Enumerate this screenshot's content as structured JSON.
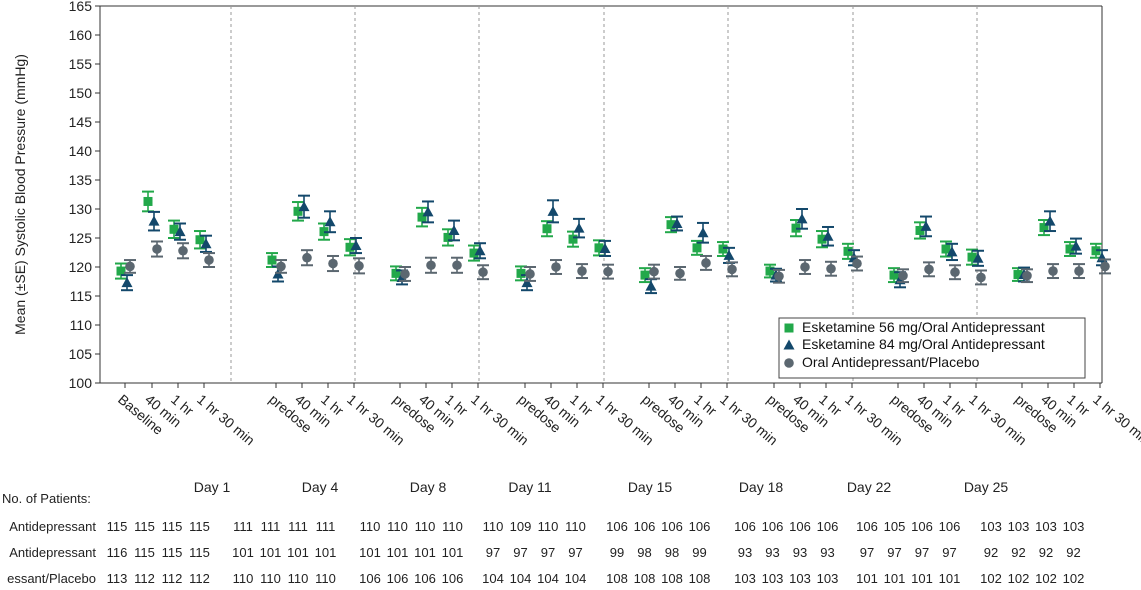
{
  "chart_data": {
    "type": "scatter",
    "ylabel": "Mean (±SE) Systolic Blood Pressure (mmHg)",
    "xlabel": "",
    "ylim": [
      100,
      165
    ],
    "yticks": [
      100,
      105,
      110,
      115,
      120,
      125,
      130,
      135,
      140,
      145,
      150,
      155,
      160,
      165
    ],
    "grid": false,
    "legend_position": "bottom-right",
    "groups": [
      {
        "day": "",
        "timepoints": [
          "Baseline"
        ]
      },
      {
        "day": "Day 1",
        "timepoints": [
          "40 min",
          "1 hr",
          "1 hr 30 min"
        ]
      },
      {
        "day": "Day 4",
        "timepoints": [
          "predose",
          "40 min",
          "1 hr",
          "1 hr 30 min"
        ]
      },
      {
        "day": "Day 8",
        "timepoints": [
          "predose",
          "40 min",
          "1 hr",
          "1 hr 30 min"
        ]
      },
      {
        "day": "Day 11",
        "timepoints": [
          "predose",
          "40 min",
          "1 hr",
          "1 hr 30 min"
        ]
      },
      {
        "day": "Day 15",
        "timepoints": [
          "predose",
          "40 min",
          "1 hr",
          "1 hr 30 min"
        ]
      },
      {
        "day": "Day 18",
        "timepoints": [
          "predose",
          "40 min",
          "1 hr",
          "1 hr 30 min"
        ]
      },
      {
        "day": "Day 22",
        "timepoints": [
          "predose",
          "40 min",
          "1 hr",
          "1 hr 30 min"
        ]
      },
      {
        "day": "Day 25",
        "timepoints": [
          "predose",
          "40 min",
          "1 hr",
          "1 hr 30 min"
        ]
      }
    ],
    "series": [
      {
        "name": "Esketamine 56 mg/Oral Antidepressant",
        "marker": "square",
        "color": "#22a84a",
        "values": [
          119.3,
          131.3,
          126.5,
          124.7,
          121.2,
          129.6,
          126.1,
          123.4,
          118.9,
          128.6,
          125.1,
          122.4,
          118.9,
          126.6,
          124.8,
          123.3,
          118.6,
          127.3,
          123.3,
          123.1,
          119.3,
          126.7,
          124.8,
          122.7,
          118.6,
          126.3,
          123.1,
          121.7,
          118.7,
          126.8,
          123.1,
          122.8
        ],
        "se": [
          1.3,
          1.7,
          1.5,
          1.5,
          1.2,
          1.6,
          1.4,
          1.4,
          1.2,
          1.6,
          1.4,
          1.3,
          1.2,
          1.3,
          1.3,
          1.3,
          1.2,
          1.3,
          1.2,
          1.2,
          1.1,
          1.4,
          1.4,
          1.3,
          1.2,
          1.4,
          1.3,
          1.3,
          1.1,
          1.3,
          1.2,
          1.2
        ]
      },
      {
        "name": "Esketamine 84 mg/Oral Antidepressant",
        "marker": "triangle",
        "color": "#13486b",
        "values": [
          117.3,
          127.9,
          126.1,
          124.0,
          118.8,
          130.4,
          127.8,
          123.7,
          118.2,
          129.5,
          126.3,
          122.8,
          117.3,
          129.6,
          126.7,
          123.2,
          116.7,
          127.5,
          125.9,
          122.0,
          118.6,
          128.3,
          125.3,
          121.6,
          117.8,
          127.0,
          122.6,
          121.5,
          118.7,
          127.9,
          123.6,
          121.6
        ],
        "se": [
          1.3,
          1.6,
          1.4,
          1.4,
          1.3,
          1.9,
          1.8,
          1.3,
          1.2,
          1.8,
          1.7,
          1.3,
          1.3,
          1.9,
          1.6,
          1.3,
          1.2,
          1.2,
          1.7,
          1.3,
          1.1,
          1.7,
          1.6,
          1.3,
          1.3,
          1.7,
          1.4,
          1.3,
          1.2,
          1.7,
          1.3,
          1.3
        ]
      },
      {
        "name": "Oral Antidepressant/Placebo",
        "marker": "circle",
        "color": "#5b6770",
        "values": [
          120.1,
          123.1,
          122.8,
          121.2,
          120.1,
          121.6,
          120.6,
          120.2,
          118.8,
          120.3,
          120.3,
          119.1,
          118.8,
          120.0,
          119.3,
          119.2,
          119.2,
          118.9,
          120.7,
          119.6,
          118.4,
          120.0,
          119.7,
          120.6,
          118.5,
          119.6,
          119.1,
          118.2,
          118.5,
          119.3,
          119.3,
          120.1
        ],
        "se": [
          1.1,
          1.3,
          1.3,
          1.2,
          1.1,
          1.3,
          1.3,
          1.3,
          1.2,
          1.3,
          1.3,
          1.2,
          1.2,
          1.2,
          1.2,
          1.2,
          1.2,
          1.1,
          1.2,
          1.2,
          1.1,
          1.2,
          1.2,
          1.2,
          1.1,
          1.2,
          1.2,
          1.2,
          1.1,
          1.2,
          1.2,
          1.2
        ]
      }
    ]
  },
  "patients": {
    "title": "No. of Patients:",
    "rows": [
      {
        "label": "Antidepressant",
        "groups": [
          [
            "115",
            "115",
            "115",
            "115"
          ],
          [
            "111",
            "111",
            "111",
            "111"
          ],
          [
            "110",
            "110",
            "110",
            "110"
          ],
          [
            "110",
            "109",
            "110",
            "110"
          ],
          [
            "106",
            "106",
            "106",
            "106"
          ],
          [
            "106",
            "106",
            "106",
            "106"
          ],
          [
            "106",
            "105",
            "106",
            "106"
          ],
          [
            "103",
            "103",
            "103",
            "103"
          ]
        ]
      },
      {
        "label": "Antidepressant",
        "groups": [
          [
            "116",
            "115",
            "115",
            "115"
          ],
          [
            "101",
            "101",
            "101",
            "101"
          ],
          [
            "101",
            "101",
            "101",
            "101"
          ],
          [
            "97",
            "97",
            "97",
            "97"
          ],
          [
            "99",
            "98",
            "98",
            "99"
          ],
          [
            "93",
            "93",
            "93",
            "93"
          ],
          [
            "97",
            "97",
            "97",
            "97"
          ],
          [
            "92",
            "92",
            "92",
            "92"
          ]
        ]
      },
      {
        "label": "essant/Placebo",
        "groups": [
          [
            "113",
            "112",
            "112",
            "112"
          ],
          [
            "110",
            "110",
            "110",
            "110"
          ],
          [
            "106",
            "106",
            "106",
            "106"
          ],
          [
            "104",
            "104",
            "104",
            "104"
          ],
          [
            "108",
            "108",
            "108",
            "108"
          ],
          [
            "103",
            "103",
            "103",
            "103"
          ],
          [
            "101",
            "101",
            "101",
            "101"
          ],
          [
            "102",
            "102",
            "102",
            "102"
          ]
        ]
      }
    ]
  }
}
